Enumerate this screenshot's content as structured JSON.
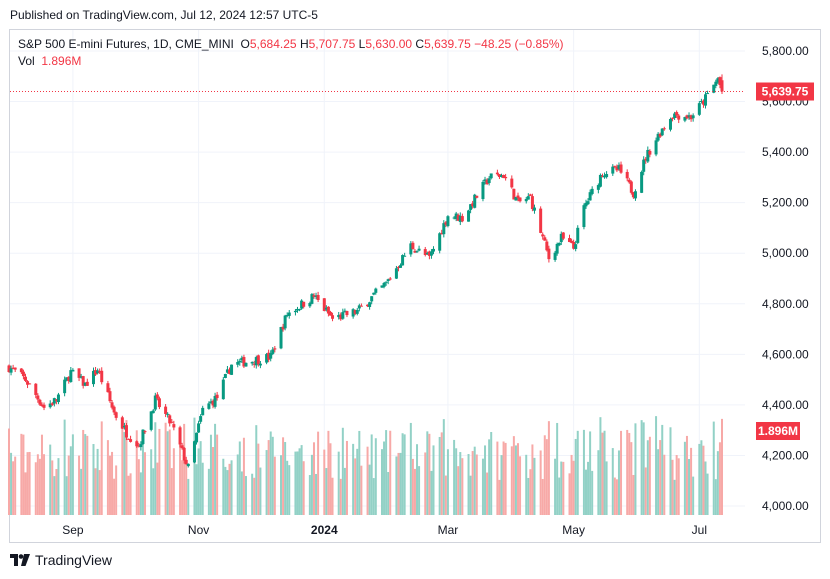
{
  "published": "Published on TradingView.com, Jul 12, 2024 12:57 UTC-5",
  "brand": "TradingView",
  "legend": {
    "symbol": "S&P 500 E-mini Futures, 1D, CME_MINI",
    "open_label": "O",
    "open": "5,684.25",
    "high_label": "H",
    "high": "5,707.75",
    "low_label": "L",
    "low": "5,630.00",
    "close_label": "C",
    "close": "5,639.75",
    "change": "−48.25 (−0.85%)",
    "vol_label": "Vol",
    "vol": "1.896M"
  },
  "colors": {
    "up": "#089981",
    "down": "#f23645",
    "vol_up": "#92d1c6",
    "vol_down": "#f7a9a7"
  },
  "chart_data": {
    "type": "candlestick",
    "y_axis": {
      "min": 4000,
      "max": 5800,
      "step": 200,
      "ticks": [
        "4,000.00",
        "4,200.00",
        "4,400.00",
        "4,600.00",
        "4,800.00",
        "5,000.00",
        "5,200.00",
        "5,400.00",
        "5,600.00",
        "5,800.00"
      ]
    },
    "x_axis": {
      "labels": [
        "Sep",
        "Nov",
        "2024",
        "Mar",
        "May",
        "Jul"
      ]
    },
    "last_price_label": "5,639.75",
    "last_price": 5639.75,
    "volume_label": "1.896M",
    "anchors": [
      [
        "2023-08-01",
        4550
      ],
      [
        "2023-08-09",
        4500
      ],
      [
        "2023-08-18",
        4390
      ],
      [
        "2023-08-24",
        4420
      ],
      [
        "2023-08-31",
        4530
      ],
      [
        "2023-09-07",
        4480
      ],
      [
        "2023-09-13",
        4540
      ],
      [
        "2023-09-21",
        4370
      ],
      [
        "2023-09-27",
        4290
      ],
      [
        "2023-10-03",
        4240
      ],
      [
        "2023-10-11",
        4420
      ],
      [
        "2023-10-19",
        4320
      ],
      [
        "2023-10-27",
        4150
      ],
      [
        "2023-11-03",
        4380
      ],
      [
        "2023-11-10",
        4430
      ],
      [
        "2023-11-17",
        4560
      ],
      [
        "2023-11-30",
        4580
      ],
      [
        "2023-12-06",
        4590
      ],
      [
        "2023-12-14",
        4760
      ],
      [
        "2023-12-27",
        4830
      ],
      [
        "2024-01-05",
        4740
      ],
      [
        "2024-01-17",
        4770
      ],
      [
        "2024-01-31",
        4880
      ],
      [
        "2024-02-12",
        5030
      ],
      [
        "2024-02-21",
        4980
      ],
      [
        "2024-03-01",
        5150
      ],
      [
        "2024-03-08",
        5140
      ],
      [
        "2024-03-21",
        5300
      ],
      [
        "2024-03-28",
        5310
      ],
      [
        "2024-04-04",
        5200
      ],
      [
        "2024-04-10",
        5220
      ],
      [
        "2024-04-19",
        4980
      ],
      [
        "2024-04-25",
        5060
      ],
      [
        "2024-05-01",
        5020
      ],
      [
        "2024-05-06",
        5180
      ],
      [
        "2024-05-15",
        5320
      ],
      [
        "2024-05-23",
        5330
      ],
      [
        "2024-05-30",
        5240
      ],
      [
        "2024-06-05",
        5380
      ],
      [
        "2024-06-12",
        5480
      ],
      [
        "2024-06-18",
        5550
      ],
      [
        "2024-06-27",
        5540
      ],
      [
        "2024-07-03",
        5600
      ],
      [
        "2024-07-10",
        5690
      ],
      [
        "2024-07-12",
        5640
      ]
    ]
  }
}
